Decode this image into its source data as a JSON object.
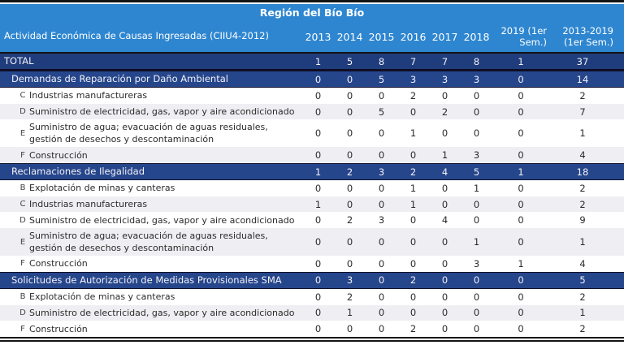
{
  "header": {
    "region_title": "Región del Bío Bío",
    "activity_label": "Actividad Económica de Causas Ingresadas (CIIU4-2012)",
    "year_columns": [
      "2013",
      "2014",
      "2015",
      "2016",
      "2017",
      "2018",
      "2019 (1er Sem.)",
      "2013-2019 (1er Sem.)"
    ]
  },
  "colors": {
    "header_blue": "#2E86D0",
    "total_navy": "#1F3C7C",
    "section_navy": "#26468C",
    "band_gray": "#EFEFF3",
    "rule_black": "#141414"
  },
  "rows": [
    {
      "type": "total",
      "code": "",
      "label": "TOTAL",
      "values": [
        1,
        5,
        8,
        7,
        7,
        8,
        1,
        37
      ]
    },
    {
      "type": "section",
      "code": "",
      "label": "Demandas de Reparación por Daño Ambiental",
      "values": [
        0,
        0,
        5,
        3,
        3,
        3,
        0,
        14
      ]
    },
    {
      "type": "item",
      "code": "C",
      "label": "Industrias manufactureras",
      "values": [
        0,
        0,
        0,
        2,
        0,
        0,
        0,
        2
      ]
    },
    {
      "type": "item",
      "code": "D",
      "label": "Suministro de electricidad, gas, vapor y aire acondicionado",
      "values": [
        0,
        0,
        5,
        0,
        2,
        0,
        0,
        7
      ]
    },
    {
      "type": "item",
      "code": "E",
      "label": "Suministro de agua; evacuación de aguas residuales, gestión de desechos y descontaminación",
      "values": [
        0,
        0,
        0,
        1,
        0,
        0,
        0,
        1
      ]
    },
    {
      "type": "item",
      "code": "F",
      "label": "Construcción",
      "values": [
        0,
        0,
        0,
        0,
        1,
        3,
        0,
        4
      ]
    },
    {
      "type": "section",
      "code": "",
      "label": "Reclamaciones de Ilegalidad",
      "values": [
        1,
        2,
        3,
        2,
        4,
        5,
        1,
        18
      ]
    },
    {
      "type": "item",
      "code": "B",
      "label": "Explotación de minas y canteras",
      "values": [
        0,
        0,
        0,
        1,
        0,
        1,
        0,
        2
      ]
    },
    {
      "type": "item",
      "code": "C",
      "label": "Industrias manufactureras",
      "values": [
        1,
        0,
        0,
        1,
        0,
        0,
        0,
        2
      ]
    },
    {
      "type": "item",
      "code": "D",
      "label": "Suministro de electricidad, gas, vapor y aire acondicionado",
      "values": [
        0,
        2,
        3,
        0,
        4,
        0,
        0,
        9
      ]
    },
    {
      "type": "item",
      "code": "E",
      "label": "Suministro de agua; evacuación de aguas residuales, gestión de desechos y descontaminación",
      "values": [
        0,
        0,
        0,
        0,
        0,
        1,
        0,
        1
      ]
    },
    {
      "type": "item",
      "code": "F",
      "label": "Construcción",
      "values": [
        0,
        0,
        0,
        0,
        0,
        3,
        1,
        4
      ]
    },
    {
      "type": "section",
      "code": "",
      "label": "Solicitudes de Autorización de Medidas Provisionales SMA",
      "values": [
        0,
        3,
        0,
        2,
        0,
        0,
        0,
        5
      ]
    },
    {
      "type": "item",
      "code": "B",
      "label": "Explotación de minas y canteras",
      "values": [
        0,
        2,
        0,
        0,
        0,
        0,
        0,
        2
      ]
    },
    {
      "type": "item",
      "code": "D",
      "label": "Suministro de electricidad, gas, vapor y aire acondicionado",
      "values": [
        0,
        1,
        0,
        0,
        0,
        0,
        0,
        1
      ]
    },
    {
      "type": "item",
      "code": "F",
      "label": "Construcción",
      "values": [
        0,
        0,
        0,
        2,
        0,
        0,
        0,
        2
      ]
    }
  ]
}
